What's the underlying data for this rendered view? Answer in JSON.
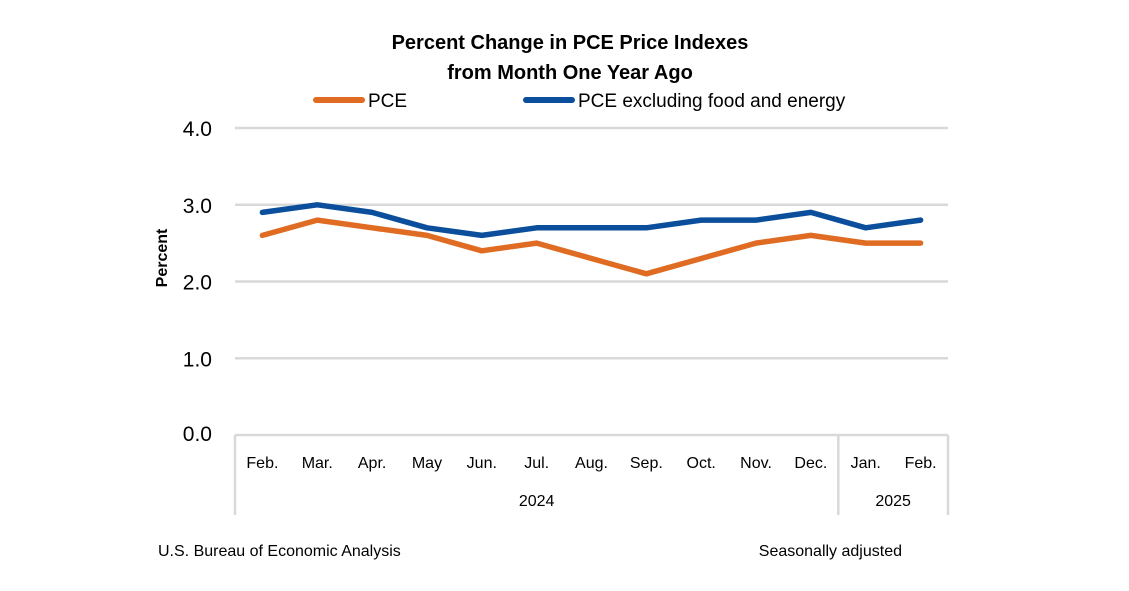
{
  "chart_data": {
    "type": "line",
    "title": [
      "Percent Change in PCE Price Indexes",
      "from Month One Year Ago"
    ],
    "xlabel": "",
    "ylabel": "Percent",
    "ylim": [
      0,
      4
    ],
    "yticks": [
      0,
      1,
      2,
      3,
      4
    ],
    "ytick_labels": [
      "0.0",
      "1.0",
      "2.0",
      "3.0",
      "4.0"
    ],
    "grid": true,
    "legend_position": "top",
    "categories": [
      "Feb.",
      "Mar.",
      "Apr.",
      "May",
      "Jun.",
      "Jul.",
      "Aug.",
      "Sep.",
      "Oct.",
      "Nov.",
      "Dec.",
      "Jan.",
      "Feb."
    ],
    "year_groups": [
      {
        "label": "2024",
        "count": 11
      },
      {
        "label": "2025",
        "count": 2
      }
    ],
    "series": [
      {
        "name": "PCE",
        "color": "#e06c23",
        "values": [
          2.6,
          2.8,
          2.7,
          2.6,
          2.4,
          2.5,
          2.3,
          2.1,
          2.3,
          2.5,
          2.6,
          2.5,
          2.5
        ]
      },
      {
        "name": "PCE excluding food and energy",
        "color": "#0b4f9c",
        "values": [
          2.9,
          3.0,
          2.9,
          2.7,
          2.6,
          2.7,
          2.7,
          2.7,
          2.8,
          2.8,
          2.9,
          2.7,
          2.8
        ]
      }
    ],
    "footer_left": "U.S. Bureau of Economic Analysis",
    "footer_right": "Seasonally adjusted"
  }
}
